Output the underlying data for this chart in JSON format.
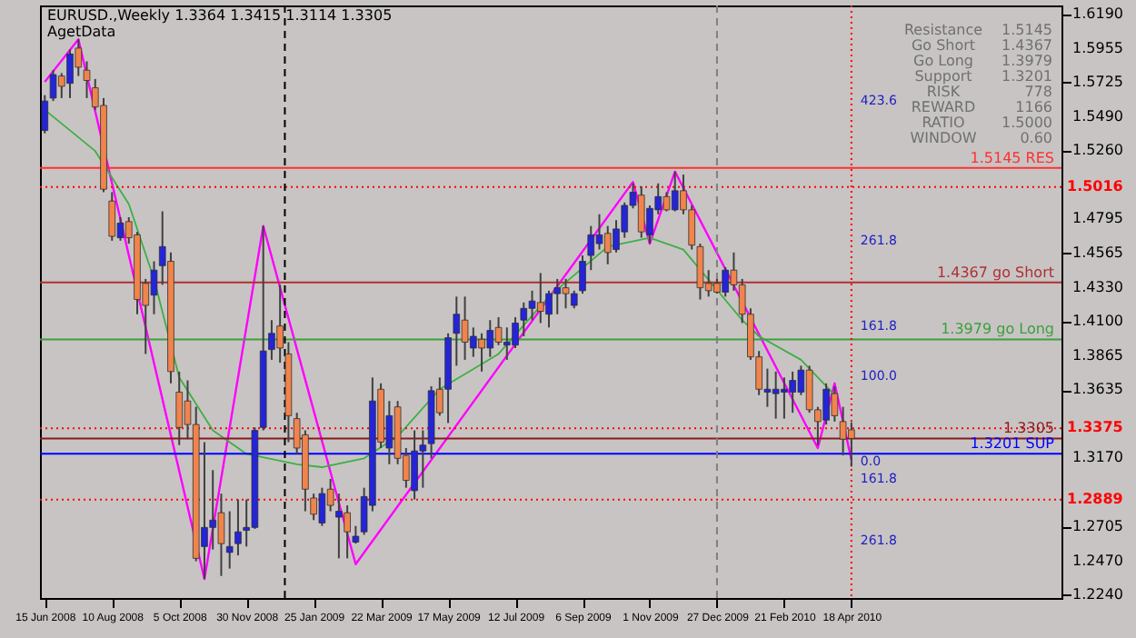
{
  "chart_data": {
    "type": "candlestick",
    "title": "EURUSD.,Weekly 1.3364 1.3415 1.3114 1.3305",
    "subtitle": "AgetData",
    "x": [
      "2008-06-15",
      "2008-06-22",
      "2008-06-29",
      "2008-07-06",
      "2008-07-13",
      "2008-07-20",
      "2008-07-27",
      "2008-08-03",
      "2008-08-10",
      "2008-08-17",
      "2008-08-24",
      "2008-08-31",
      "2008-09-07",
      "2008-09-14",
      "2008-09-21",
      "2008-09-28",
      "2008-10-05",
      "2008-10-12",
      "2008-10-19",
      "2008-10-26",
      "2008-11-02",
      "2008-11-09",
      "2008-11-16",
      "2008-11-23",
      "2008-11-30",
      "2008-12-07",
      "2008-12-14",
      "2008-12-21",
      "2008-12-28",
      "2009-01-04",
      "2009-01-11",
      "2009-01-18",
      "2009-01-25",
      "2009-02-01",
      "2009-02-08",
      "2009-02-15",
      "2009-02-22",
      "2009-03-01",
      "2009-03-08",
      "2009-03-15",
      "2009-03-22",
      "2009-03-29",
      "2009-04-05",
      "2009-04-12",
      "2009-04-19",
      "2009-04-26",
      "2009-05-03",
      "2009-05-10",
      "2009-05-17",
      "2009-05-24",
      "2009-05-31",
      "2009-06-07",
      "2009-06-14",
      "2009-06-21",
      "2009-06-28",
      "2009-07-05",
      "2009-07-12",
      "2009-07-19",
      "2009-07-26",
      "2009-08-02",
      "2009-08-09",
      "2009-08-16",
      "2009-08-23",
      "2009-08-30",
      "2009-09-06",
      "2009-09-13",
      "2009-09-20",
      "2009-09-27",
      "2009-10-04",
      "2009-10-11",
      "2009-10-18",
      "2009-10-25",
      "2009-11-01",
      "2009-11-08",
      "2009-11-15",
      "2009-11-22",
      "2009-11-29",
      "2009-12-06",
      "2009-12-13",
      "2009-12-20",
      "2009-12-27",
      "2010-01-03",
      "2010-01-10",
      "2010-01-17",
      "2010-01-24",
      "2010-01-31",
      "2010-02-07",
      "2010-02-14",
      "2010-02-21",
      "2010-02-28",
      "2010-03-07",
      "2010-03-14",
      "2010-03-21",
      "2010-03-28",
      "2010-04-04",
      "2010-04-11",
      "2010-04-18"
    ],
    "ohlc": [
      [
        1.54,
        1.564,
        1.538,
        1.56
      ],
      [
        1.562,
        1.581,
        1.56,
        1.578
      ],
      [
        1.577,
        1.579,
        1.562,
        1.57
      ],
      [
        1.572,
        1.595,
        1.562,
        1.592
      ],
      [
        1.596,
        1.602,
        1.577,
        1.583
      ],
      [
        1.581,
        1.587,
        1.562,
        1.574
      ],
      [
        1.569,
        1.575,
        1.554,
        1.556
      ],
      [
        1.557,
        1.562,
        1.498,
        1.5
      ],
      [
        1.492,
        1.498,
        1.465,
        1.468
      ],
      [
        1.467,
        1.481,
        1.465,
        1.477
      ],
      [
        1.478,
        1.481,
        1.463,
        1.467
      ],
      [
        1.469,
        1.471,
        1.415,
        1.425
      ],
      [
        1.436,
        1.439,
        1.388,
        1.421
      ],
      [
        1.428,
        1.451,
        1.415,
        1.445
      ],
      [
        1.448,
        1.485,
        1.435,
        1.461
      ],
      [
        1.451,
        1.457,
        1.368,
        1.376
      ],
      [
        1.362,
        1.376,
        1.326,
        1.338
      ],
      [
        1.356,
        1.37,
        1.33,
        1.34
      ],
      [
        1.34,
        1.352,
        1.247,
        1.249
      ],
      [
        1.257,
        1.328,
        1.235,
        1.27
      ],
      [
        1.27,
        1.309,
        1.255,
        1.275
      ],
      [
        1.28,
        1.293,
        1.237,
        1.259
      ],
      [
        1.253,
        1.281,
        1.242,
        1.257
      ],
      [
        1.259,
        1.289,
        1.251,
        1.267
      ],
      [
        1.268,
        1.289,
        1.257,
        1.27
      ],
      [
        1.27,
        1.338,
        1.269,
        1.336
      ],
      [
        1.338,
        1.475,
        1.336,
        1.39
      ],
      [
        1.391,
        1.411,
        1.384,
        1.402
      ],
      [
        1.407,
        1.435,
        1.382,
        1.392
      ],
      [
        1.388,
        1.396,
        1.328,
        1.346
      ],
      [
        1.344,
        1.348,
        1.32,
        1.324
      ],
      [
        1.333,
        1.336,
        1.281,
        1.296
      ],
      [
        1.29,
        1.293,
        1.275,
        1.279
      ],
      [
        1.273,
        1.297,
        1.271,
        1.293
      ],
      [
        1.296,
        1.303,
        1.281,
        1.285
      ],
      [
        1.277,
        1.293,
        1.249,
        1.281
      ],
      [
        1.28,
        1.285,
        1.249,
        1.267
      ],
      [
        1.26,
        1.271,
        1.259,
        1.264
      ],
      [
        1.267,
        1.297,
        1.265,
        1.291
      ],
      [
        1.285,
        1.372,
        1.281,
        1.356
      ],
      [
        1.364,
        1.368,
        1.324,
        1.328
      ],
      [
        1.324,
        1.356,
        1.313,
        1.346
      ],
      [
        1.352,
        1.356,
        1.313,
        1.317
      ],
      [
        1.319,
        1.324,
        1.297,
        1.302
      ],
      [
        1.295,
        1.336,
        1.289,
        1.322
      ],
      [
        1.322,
        1.336,
        1.297,
        1.326
      ],
      [
        1.327,
        1.366,
        1.317,
        1.363
      ],
      [
        1.364,
        1.372,
        1.346,
        1.348
      ],
      [
        1.364,
        1.402,
        1.341,
        1.399
      ],
      [
        1.402,
        1.427,
        1.38,
        1.415
      ],
      [
        1.411,
        1.427,
        1.384,
        1.396
      ],
      [
        1.392,
        1.406,
        1.386,
        1.4
      ],
      [
        1.398,
        1.402,
        1.376,
        1.392
      ],
      [
        1.392,
        1.411,
        1.386,
        1.404
      ],
      [
        1.406,
        1.413,
        1.394,
        1.396
      ],
      [
        1.394,
        1.406,
        1.384,
        1.396
      ],
      [
        1.394,
        1.413,
        1.392,
        1.409
      ],
      [
        1.411,
        1.423,
        1.4,
        1.419
      ],
      [
        1.419,
        1.431,
        1.411,
        1.424
      ],
      [
        1.423,
        1.443,
        1.409,
        1.417
      ],
      [
        1.415,
        1.431,
        1.406,
        1.429
      ],
      [
        1.429,
        1.439,
        1.415,
        1.433
      ],
      [
        1.433,
        1.439,
        1.419,
        1.429
      ],
      [
        1.421,
        1.431,
        1.419,
        1.429
      ],
      [
        1.431,
        1.455,
        1.429,
        1.451
      ],
      [
        1.455,
        1.475,
        1.445,
        1.469
      ],
      [
        1.463,
        1.483,
        1.459,
        1.469
      ],
      [
        1.47,
        1.475,
        1.449,
        1.457
      ],
      [
        1.459,
        1.479,
        1.457,
        1.473
      ],
      [
        1.471,
        1.491,
        1.467,
        1.489
      ],
      [
        1.489,
        1.504,
        1.487,
        1.498
      ],
      [
        1.496,
        1.502,
        1.467,
        1.471
      ],
      [
        1.469,
        1.489,
        1.463,
        1.487
      ],
      [
        1.486,
        1.504,
        1.483,
        1.495
      ],
      [
        1.495,
        1.498,
        1.485,
        1.486
      ],
      [
        1.486,
        1.512,
        1.485,
        1.499
      ],
      [
        1.499,
        1.51,
        1.483,
        1.486
      ],
      [
        1.486,
        1.489,
        1.459,
        1.462
      ],
      [
        1.461,
        1.463,
        1.425,
        1.433
      ],
      [
        1.436,
        1.445,
        1.427,
        1.431
      ],
      [
        1.436,
        1.439,
        1.429,
        1.43
      ],
      [
        1.43,
        1.447,
        1.427,
        1.445
      ],
      [
        1.445,
        1.457,
        1.431,
        1.435
      ],
      [
        1.435,
        1.439,
        1.409,
        1.415
      ],
      [
        1.415,
        1.419,
        1.384,
        1.386
      ],
      [
        1.386,
        1.39,
        1.36,
        1.364
      ],
      [
        1.362,
        1.378,
        1.352,
        1.364
      ],
      [
        1.361,
        1.376,
        1.344,
        1.364
      ],
      [
        1.362,
        1.372,
        1.344,
        1.364
      ],
      [
        1.362,
        1.376,
        1.348,
        1.37
      ],
      [
        1.362,
        1.38,
        1.36,
        1.377
      ],
      [
        1.377,
        1.38,
        1.348,
        1.35
      ],
      [
        1.35,
        1.352,
        1.326,
        1.342
      ],
      [
        1.343,
        1.368,
        1.34,
        1.364
      ],
      [
        1.361,
        1.366,
        1.342,
        1.346
      ],
      [
        1.342,
        1.352,
        1.319,
        1.33
      ],
      [
        1.3364,
        1.3415,
        1.3114,
        1.3305
      ]
    ],
    "colors": [
      "#2424d8",
      "#2424d8",
      "#f0844c",
      "#2424d8",
      "#f0844c",
      "#f0844c",
      "#f0844c",
      "#f0844c",
      "#f0844c",
      "#2424d8",
      "#f0844c",
      "#f0844c",
      "#f0844c",
      "#2424d8",
      "#2424d8",
      "#f0844c",
      "#f0844c",
      "#f0844c",
      "#f0844c",
      "#2424d8",
      "#2424d8",
      "#f0844c",
      "#2424d8",
      "#2424d8",
      "#2424d8",
      "#2424d8",
      "#2424d8",
      "#2424d8",
      "#f0844c",
      "#f0844c",
      "#f0844c",
      "#f0844c",
      "#f0844c",
      "#2424d8",
      "#f0844c",
      "#2424d8",
      "#f0844c",
      "#2424d8",
      "#2424d8",
      "#2424d8",
      "#f0844c",
      "#2424d8",
      "#f0844c",
      "#f0844c",
      "#2424d8",
      "#2424d8",
      "#2424d8",
      "#f0844c",
      "#2424d8",
      "#2424d8",
      "#f0844c",
      "#2424d8",
      "#f0844c",
      "#2424d8",
      "#f0844c",
      "#2424d8",
      "#2424d8",
      "#2424d8",
      "#2424d8",
      "#f0844c",
      "#2424d8",
      "#2424d8",
      "#f0844c",
      "#2424d8",
      "#2424d8",
      "#2424d8",
      "#2424d8",
      "#f0844c",
      "#2424d8",
      "#2424d8",
      "#2424d8",
      "#f0844c",
      "#2424d8",
      "#2424d8",
      "#f0844c",
      "#2424d8",
      "#f0844c",
      "#f0844c",
      "#f0844c",
      "#f0844c",
      "#f0844c",
      "#2424d8",
      "#f0844c",
      "#f0844c",
      "#f0844c",
      "#f0844c",
      "#2424d8",
      "#2424d8",
      "#2424d8",
      "#2424d8",
      "#2424d8",
      "#f0844c",
      "#f0844c",
      "#2424d8",
      "#f0844c",
      "#f0844c",
      "#f0844c"
    ],
    "series": [
      {
        "type": "line",
        "color": "#ff00ff",
        "x": [
          "2008-06-15",
          "2008-07-13",
          "2008-10-26",
          "2008-12-14",
          "2009-03-01",
          "2009-10-18",
          "2009-11-01",
          "2009-11-22",
          "2010-03-21",
          "2010-04-04",
          "2010-04-18"
        ],
        "values": [
          1.573,
          1.602,
          1.235,
          1.475,
          1.245,
          1.505,
          1.463,
          1.512,
          1.324,
          1.368,
          1.316
        ]
      },
      {
        "type": "line",
        "color": "#3cb043",
        "x": [
          "2008-06-15",
          "2008-07-27",
          "2008-08-24",
          "2008-09-14",
          "2008-10-05",
          "2008-11-02",
          "2008-11-30",
          "2009-01-11",
          "2009-02-01",
          "2009-03-08",
          "2009-04-05",
          "2009-05-10",
          "2009-06-28",
          "2009-08-09",
          "2009-09-27",
          "2009-11-01",
          "2009-11-29",
          "2010-01-17",
          "2010-01-31",
          "2010-03-07",
          "2010-04-04"
        ],
        "values": [
          1.554,
          1.526,
          1.49,
          1.439,
          1.372,
          1.336,
          1.32,
          1.313,
          1.311,
          1.317,
          1.332,
          1.364,
          1.388,
          1.427,
          1.461,
          1.467,
          1.459,
          1.411,
          1.4,
          1.384,
          1.36
        ]
      }
    ],
    "ref_lines": [
      {
        "axis": "y",
        "value": 1.5145,
        "label": "1.5145 RES",
        "color": "#ff3030",
        "line_style": "solid"
      },
      {
        "axis": "y",
        "value": 1.5016,
        "label": "1.5016",
        "color": "#ff0000",
        "line_style": "dotted"
      },
      {
        "axis": "y",
        "value": 1.4367,
        "label": "1.4367 go Short",
        "color": "#b03030",
        "line_style": "solid"
      },
      {
        "axis": "y",
        "value": 1.3979,
        "label": "1.3979 go Long",
        "color": "#3ca03c",
        "line_style": "solid"
      },
      {
        "axis": "y",
        "value": 1.3375,
        "label": "1.3375",
        "color": "#ff0000",
        "line_style": "dotted"
      },
      {
        "axis": "y",
        "value": 1.3305,
        "label": "1.3305",
        "color": "#8b1a1a",
        "line_style": "solid"
      },
      {
        "axis": "y",
        "value": 1.3201,
        "label": "1.3201 SUP",
        "color": "#0000ff",
        "line_style": "solid"
      },
      {
        "axis": "y",
        "value": 1.2889,
        "label": "1.2889",
        "color": "#ff0000",
        "line_style": "dotted"
      },
      {
        "axis": "x",
        "value": "2009-01-01",
        "color": "#000000",
        "line_style": "dashed"
      },
      {
        "axis": "x",
        "value": "2009-12-27",
        "color": "#808080",
        "line_style": "dashed"
      },
      {
        "axis": "x",
        "value": "2010-04-18",
        "color": "#ff0000",
        "line_style": "dotted"
      }
    ],
    "annotations": [
      "Resistance",
      "1.5145",
      "Go Short",
      "1.4367",
      "Go Long",
      "1.3979",
      "Support",
      "1.3201",
      "RISK",
      "778",
      "REWARD",
      "1166",
      "RATIO",
      "1.5000",
      "WINDOW",
      "0.60",
      {
        "text": "423.6",
        "x": "2010-04-18",
        "y": 1.56
      },
      {
        "text": "261.8",
        "x": "2010-04-18",
        "y": 1.465
      },
      {
        "text": "161.8",
        "x": "2010-04-18",
        "y": 1.407
      },
      {
        "text": "100.0",
        "x": "2010-04-18",
        "y": 1.373
      },
      {
        "text": "0.0",
        "x": "2010-04-18",
        "y": 1.315
      },
      {
        "text": "161.8",
        "x": "2010-04-18",
        "y": 1.303
      },
      {
        "text": "261.8",
        "x": "2010-04-18",
        "y": 1.261
      }
    ],
    "xlim": [
      "2008-06-11",
      "2010-10-10"
    ],
    "ylim": [
      1.222,
      1.625
    ],
    "xticks": [
      {
        "value": "2008-06-15",
        "label": "15 Jun 2008"
      },
      {
        "value": "2008-08-10",
        "label": "10 Aug 2008"
      },
      {
        "value": "2008-10-05",
        "label": "5 Oct 2008"
      },
      {
        "value": "2008-11-30",
        "label": "30 Nov 2008"
      },
      {
        "value": "2009-01-25",
        "label": "25 Jan 2009"
      },
      {
        "value": "2009-03-22",
        "label": "22 Mar 2009"
      },
      {
        "value": "2009-05-17",
        "label": "17 May 2009"
      },
      {
        "value": "2009-07-12",
        "label": "12 Jul 2009"
      },
      {
        "value": "2009-09-06",
        "label": "6 Sep 2009"
      },
      {
        "value": "2009-11-01",
        "label": "1 Nov 2009"
      },
      {
        "value": "2009-12-27",
        "label": "27 Dec 2009"
      },
      {
        "value": "2010-02-21",
        "label": "21 Feb 2010"
      },
      {
        "value": "2010-04-18",
        "label": "18 Apr 2010"
      }
    ],
    "yticks": [
      {
        "value": 1.619,
        "label": "1.6190"
      },
      1.5955,
      1.5725,
      {
        "value": 1.549,
        "label": "1.5490"
      },
      {
        "value": 1.526,
        "label": "1.5260"
      },
      1.4795,
      1.4565,
      {
        "value": 1.433,
        "label": "1.4330"
      },
      {
        "value": 1.41,
        "label": "1.4100"
      },
      1.3865,
      1.3635,
      {
        "value": 1.317,
        "label": "1.3170"
      },
      1.2705,
      {
        "value": 1.247,
        "label": "1.2470"
      },
      {
        "value": 1.224,
        "label": "1.2240"
      }
    ],
    "grid": false
  }
}
